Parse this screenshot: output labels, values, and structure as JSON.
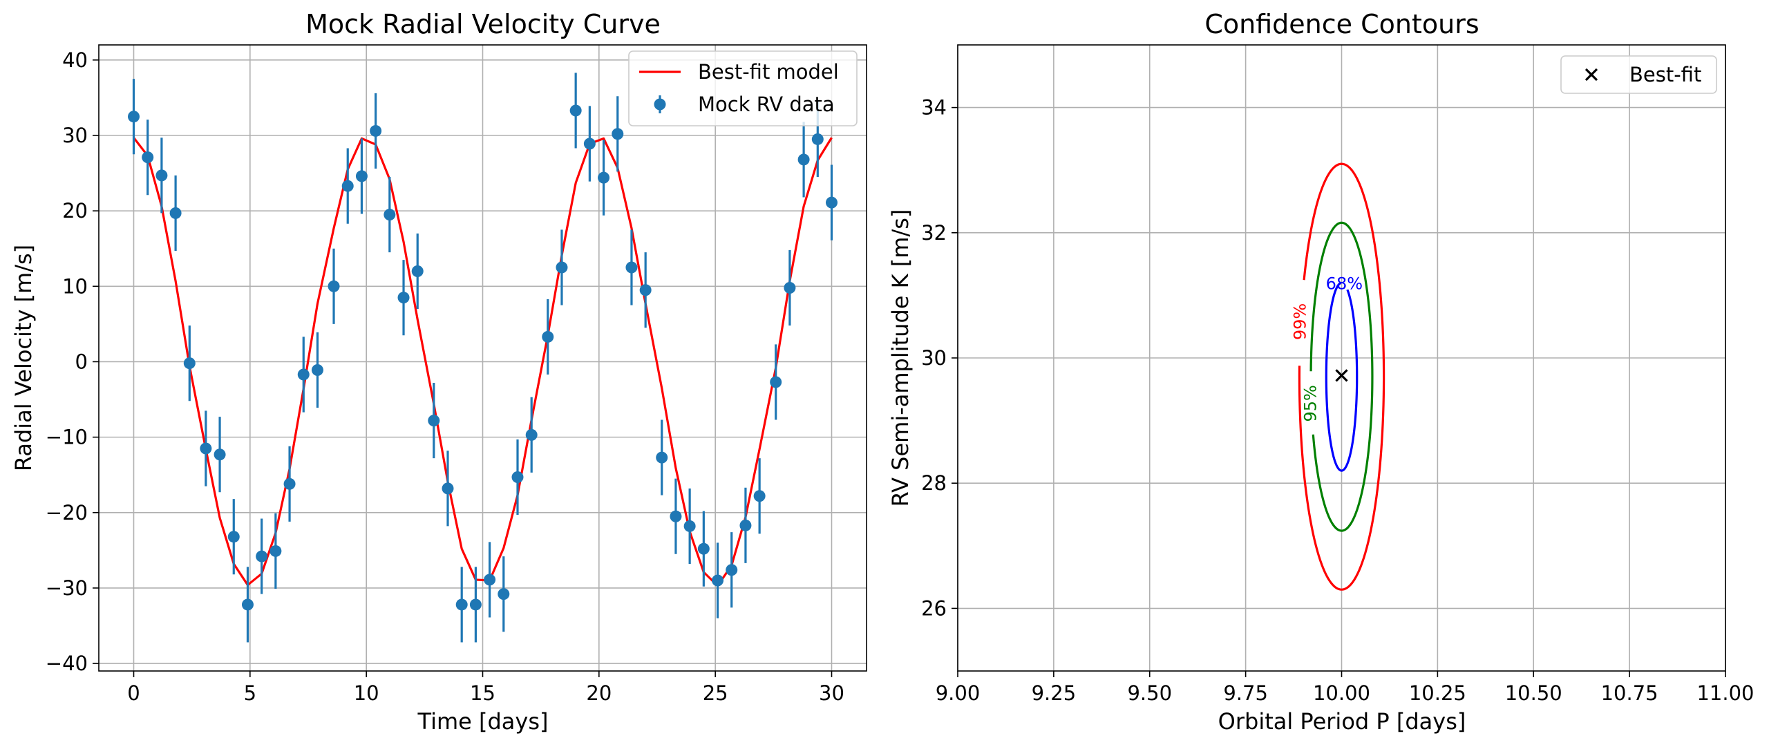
{
  "chart_data": [
    {
      "type": "scatter",
      "title": "Mock Radial Velocity Curve",
      "xlabel": "Time [days]",
      "ylabel": "Radial Velocity [m/s]",
      "xlim": [
        -1.5,
        31.5
      ],
      "ylim": [
        -41,
        42
      ],
      "xticks": [
        0,
        5,
        10,
        15,
        20,
        25,
        30
      ],
      "yticks": [
        -40,
        -30,
        -20,
        -10,
        0,
        10,
        20,
        30,
        40
      ],
      "xtick_labels": [
        "0",
        "5",
        "10",
        "15",
        "20",
        "25",
        "30"
      ],
      "ytick_labels": [
        "−40",
        "−30",
        "−20",
        "−10",
        "0",
        "10",
        "20",
        "30",
        "40"
      ],
      "grid": true,
      "legend_position": "upper right",
      "series": [
        {
          "name": "Best-fit model",
          "kind": "line",
          "color": "#ff0000",
          "x": [
            0,
            0.6,
            1.2,
            1.8,
            2.4,
            3.1,
            3.7,
            4.3,
            4.9,
            5.5,
            6.1,
            6.7,
            7.3,
            7.9,
            8.6,
            9.2,
            9.8,
            10.4,
            11.0,
            11.6,
            12.2,
            12.9,
            13.5,
            14.1,
            14.7,
            15.3,
            15.9,
            16.5,
            17.1,
            17.8,
            18.4,
            19.0,
            19.6,
            20.2,
            20.8,
            21.4,
            22.0,
            22.7,
            23.3,
            23.9,
            24.5,
            25.1,
            25.7,
            26.3,
            26.9,
            27.6,
            28.2,
            28.8,
            29.4,
            30.0
          ],
          "y": [
            29.7,
            27.3,
            20.6,
            10.7,
            -0.6,
            -11.6,
            -20.7,
            -26.8,
            -29.6,
            -28.1,
            -22.7,
            -14.2,
            -3.6,
            7.7,
            17.7,
            25.5,
            29.6,
            28.8,
            24.2,
            15.9,
            5.6,
            -5.6,
            -15.9,
            -24.8,
            -28.9,
            -29.0,
            -24.7,
            -17.7,
            -7.7,
            3.5,
            14.1,
            23.7,
            28.9,
            29.6,
            25.7,
            17.7,
            7.7,
            -3.5,
            -14.1,
            -22.5,
            -27.9,
            -29.7,
            -27.0,
            -20.6,
            -11.6,
            -0.8,
            10.7,
            20.6,
            26.7,
            29.7
          ]
        },
        {
          "name": "Mock RV data",
          "kind": "errorbar",
          "color": "#1f77b4",
          "yerr": 5,
          "x": [
            0,
            0.6,
            1.2,
            1.8,
            2.4,
            3.1,
            3.7,
            4.3,
            4.9,
            5.5,
            6.1,
            6.7,
            7.3,
            7.9,
            8.6,
            9.2,
            9.8,
            10.4,
            11.0,
            11.6,
            12.2,
            12.9,
            13.5,
            14.1,
            14.7,
            15.3,
            15.9,
            16.5,
            17.1,
            17.8,
            18.4,
            19.0,
            19.6,
            20.2,
            20.8,
            21.4,
            22.0,
            22.7,
            23.3,
            23.9,
            24.5,
            25.1,
            25.7,
            26.3,
            26.9,
            27.6,
            28.2,
            28.8,
            29.4,
            30.0
          ],
          "y": [
            32.5,
            27.1,
            24.7,
            19.7,
            -0.2,
            -11.5,
            -12.3,
            -23.2,
            -32.2,
            -25.8,
            -25.1,
            -16.2,
            -1.7,
            -1.1,
            10.0,
            23.3,
            24.6,
            30.6,
            19.5,
            8.5,
            12.0,
            -7.8,
            -16.8,
            -32.2,
            -32.2,
            -28.9,
            -30.8,
            -15.3,
            -9.7,
            3.3,
            12.5,
            33.3,
            28.9,
            24.4,
            30.2,
            12.5,
            9.5,
            -12.7,
            -20.5,
            -21.8,
            -24.8,
            -29.0,
            -27.6,
            -21.7,
            -17.8,
            -2.7,
            9.8,
            26.8,
            29.5,
            21.1
          ]
        }
      ]
    },
    {
      "type": "contour",
      "title": "Confidence Contours",
      "xlabel": "Orbital Period P [days]",
      "ylabel": "RV Semi-amplitude K [m/s]",
      "xlim": [
        9.0,
        11.0
      ],
      "ylim": [
        25,
        35
      ],
      "xticks": [
        9.0,
        9.25,
        9.5,
        9.75,
        10.0,
        10.25,
        10.5,
        10.75,
        11.0
      ],
      "yticks": [
        26,
        28,
        30,
        32,
        34
      ],
      "xtick_labels": [
        "9.00",
        "9.25",
        "9.50",
        "9.75",
        "10.00",
        "10.25",
        "10.50",
        "10.75",
        "11.00"
      ],
      "ytick_labels": [
        "26",
        "28",
        "30",
        "32",
        "34"
      ],
      "grid": true,
      "legend_position": "upper right",
      "contours": [
        {
          "label": "68%",
          "color": "#0000ff",
          "center": [
            10.0,
            29.7
          ],
          "half_width_p": 0.04,
          "half_height_k": 1.5
        },
        {
          "label": "95%",
          "color": "#008000",
          "center": [
            10.0,
            29.7
          ],
          "half_width_p": 0.08,
          "half_height_k": 2.46
        },
        {
          "label": "99%",
          "color": "#ff0000",
          "center": [
            10.0,
            29.7
          ],
          "half_width_p": 0.11,
          "half_height_k": 3.4
        }
      ],
      "best_fit": {
        "name": "Best-fit",
        "p": 10.0,
        "k": 29.72,
        "marker": "x",
        "color": "#000000"
      }
    }
  ]
}
